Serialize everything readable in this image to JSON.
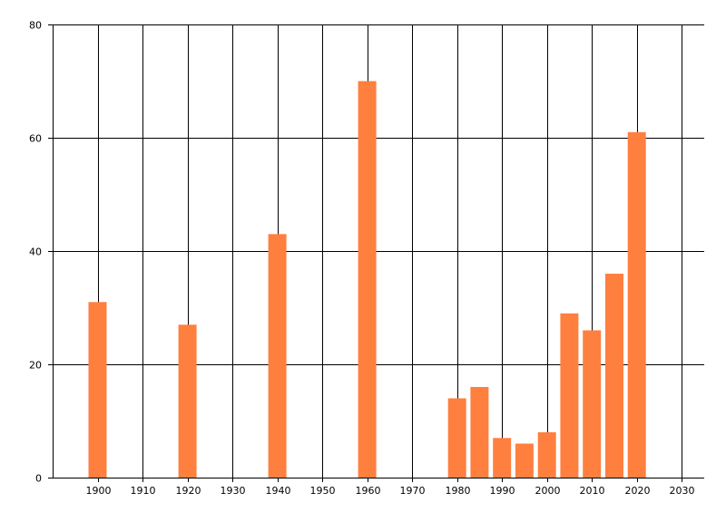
{
  "chart_data": {
    "type": "bar",
    "title": "",
    "xlabel": "",
    "ylabel": "",
    "x": [
      1900,
      1920,
      1940,
      1960,
      1980,
      1985,
      1990,
      1995,
      2000,
      2005,
      2010,
      2015,
      2020
    ],
    "values": [
      31,
      27,
      43,
      70,
      14,
      16,
      7,
      6,
      8,
      29,
      26,
      36,
      61
    ],
    "xlim": [
      1890,
      2035
    ],
    "ylim": [
      0,
      80
    ],
    "x_ticks": [
      1900,
      1910,
      1920,
      1930,
      1940,
      1950,
      1960,
      1970,
      1980,
      1990,
      2000,
      2010,
      2020,
      2030
    ],
    "y_ticks": [
      0,
      20,
      40,
      60,
      80
    ],
    "grid": true,
    "legend": "none",
    "bar_color": "#ff7f3f",
    "gridline_color": "#000000"
  }
}
